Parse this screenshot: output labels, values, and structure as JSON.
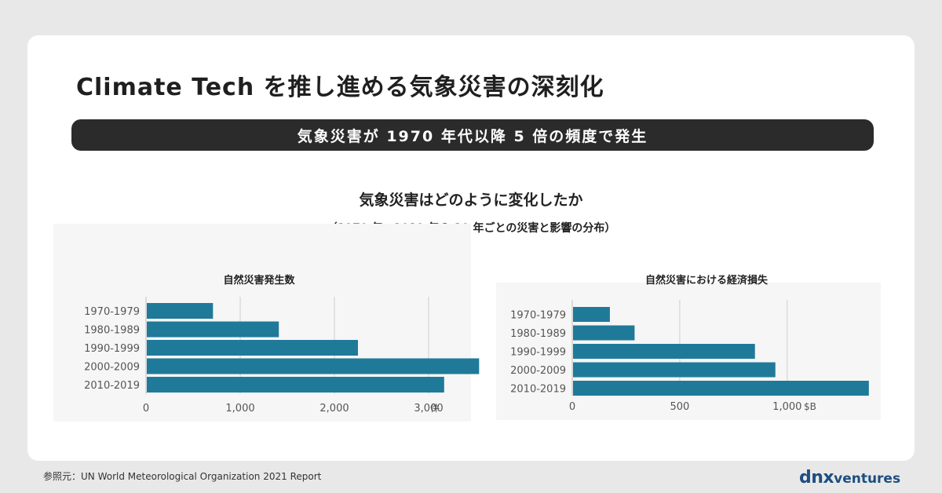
{
  "header": {
    "title": "Climate Tech を推し進める気象災害の深刻化",
    "banner": "気象災害が 1970 年代以降 5 倍の頻度で発生"
  },
  "section": {
    "title": "気象災害はどのように変化したか",
    "note": "（1970 年〜2019 年の 10 年ごとの災害と影響の分布）"
  },
  "chart_data": [
    {
      "type": "bar",
      "orientation": "horizontal",
      "title": "自然災害発生数",
      "categories": [
        "1970-1979",
        "1980-1989",
        "1990-1999",
        "2000-2009",
        "2010-2019"
      ],
      "values": [
        711,
        1410,
        2250,
        3536,
        3165
      ],
      "xlim": [
        0,
        3600
      ],
      "xticks": [
        "0",
        "1,000",
        "2,000",
        "3,000"
      ],
      "xtick_values": [
        0,
        1000,
        2000,
        3000
      ],
      "unit": "件",
      "color": "#1f7a99",
      "grid": true
    },
    {
      "type": "bar",
      "orientation": "horizontal",
      "title": "自然災害における経済損失",
      "categories": [
        "1970-1979",
        "1980-1989",
        "1990-1999",
        "2000-2009",
        "2010-2019"
      ],
      "values": [
        175,
        290,
        850,
        945,
        1380
      ],
      "xlim": [
        0,
        1450
      ],
      "xticks": [
        "0",
        "500",
        "1,000"
      ],
      "xtick_values": [
        0,
        500,
        1000
      ],
      "unit": "$B",
      "color": "#1f7a99",
      "grid": true
    }
  ],
  "footer": {
    "source": "参照元：UN World Meteorological Organization 2021 Report",
    "logo_main": "dnx",
    "logo_sub": "ventures"
  }
}
